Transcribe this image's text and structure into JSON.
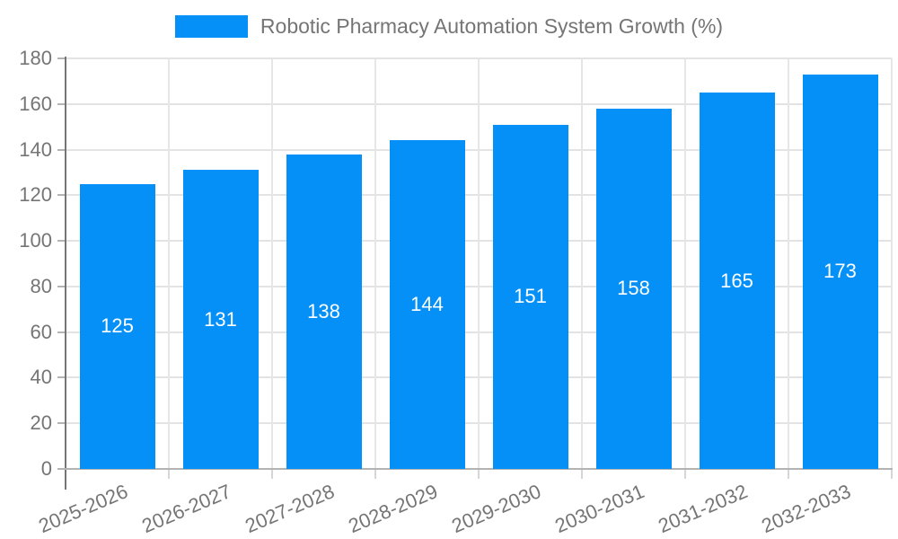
{
  "chart_data": {
    "type": "bar",
    "title": "Robotic Pharmacy Automation System Growth (%)",
    "categories": [
      "2025-2026",
      "2026-2027",
      "2027-2028",
      "2028-2029",
      "2029-2030",
      "2030-2031",
      "2031-2032",
      "2032-2033"
    ],
    "values": [
      125,
      131,
      138,
      144,
      151,
      158,
      165,
      173
    ],
    "xlabel": "",
    "ylabel": "",
    "ylim": [
      0,
      180
    ],
    "yticks": [
      0,
      20,
      40,
      60,
      80,
      100,
      120,
      140,
      160,
      180
    ],
    "grid": true,
    "legend_position": "top-center",
    "value_label_position": "inside-center",
    "colors": {
      "bar": "#0590f8",
      "value_label": "#ffffff",
      "axis_text": "#757575",
      "grid_line": "#e3e3e3",
      "axis_line": "#757575",
      "baseline": "#b3b3b3"
    }
  }
}
